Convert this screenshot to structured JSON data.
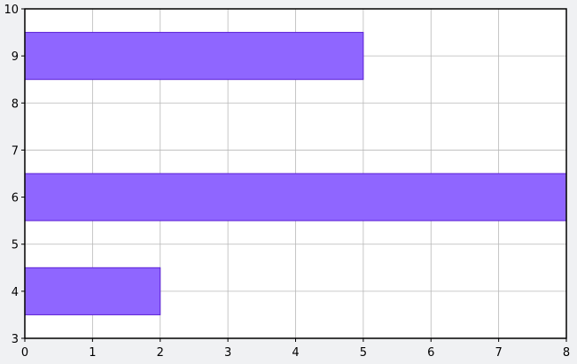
{
  "chart_data": {
    "type": "bar",
    "orientation": "horizontal",
    "title": "",
    "xlabel": "",
    "ylabel": "",
    "categories": [
      4,
      6,
      9
    ],
    "values": [
      2,
      8,
      5
    ],
    "bar_height": 1,
    "xlim": [
      0,
      8
    ],
    "ylim": [
      3,
      10
    ],
    "x_ticks": [
      "0",
      "1",
      "2",
      "3",
      "4",
      "5",
      "6",
      "7",
      "8"
    ],
    "y_ticks": [
      "3",
      "4",
      "5",
      "6",
      "7",
      "8",
      "9",
      "10"
    ],
    "grid": true,
    "legend": "none",
    "colors": {
      "bar_fill": "#8f66ff",
      "bar_stroke": "#5a1fd6",
      "grid": "#b8b8b8",
      "axis": "#000000",
      "plot_background": "#ffffff",
      "page_background": "#f0f1f3"
    }
  }
}
